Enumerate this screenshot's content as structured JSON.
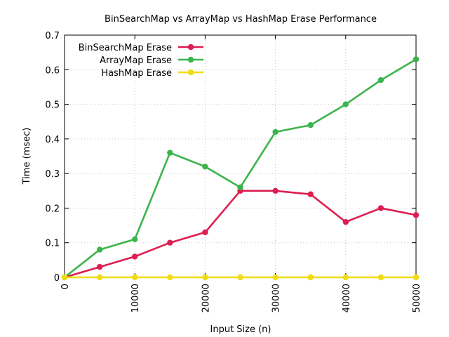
{
  "chart_data": {
    "type": "line",
    "title": "BinSearchMap vs ArrayMap vs HashMap Erase Performance",
    "xlabel": "Input Size (n)",
    "ylabel": "Time (msec)",
    "xlim": [
      0,
      50000
    ],
    "ylim": [
      0,
      0.7
    ],
    "grid": true,
    "legend_position": "top-left",
    "x_ticks": [
      0,
      10000,
      20000,
      30000,
      40000,
      50000
    ],
    "x_tick_labels": [
      "0",
      "10000",
      "20000",
      "30000",
      "40000",
      "50000"
    ],
    "y_ticks": [
      0,
      0.1,
      0.2,
      0.3,
      0.4,
      0.5,
      0.6,
      0.7
    ],
    "y_tick_labels": [
      "0",
      "0.1",
      "0.2",
      "0.3",
      "0.4",
      "0.5",
      "0.6",
      "0.7"
    ],
    "x": [
      0,
      5000,
      10000,
      15000,
      20000,
      25000,
      30000,
      35000,
      40000,
      45000,
      50000
    ],
    "series": [
      {
        "name": "BinSearchMap Erase",
        "color": "#dc1e50",
        "values": [
          0,
          0.03,
          0.06,
          0.1,
          0.13,
          0.25,
          0.25,
          0.24,
          0.16,
          0.2,
          0.18
        ]
      },
      {
        "name": "ArrayMap Erase",
        "color": "#3cb44b",
        "values": [
          0,
          0.08,
          0.11,
          0.36,
          0.32,
          0.26,
          0.42,
          0.44,
          0.5,
          0.57,
          0.63
        ]
      },
      {
        "name": "HashMap Erase",
        "color": "#f0dc14",
        "values": [
          0,
          0,
          0,
          0,
          0,
          0,
          0,
          0,
          0,
          0,
          0
        ]
      }
    ]
  }
}
